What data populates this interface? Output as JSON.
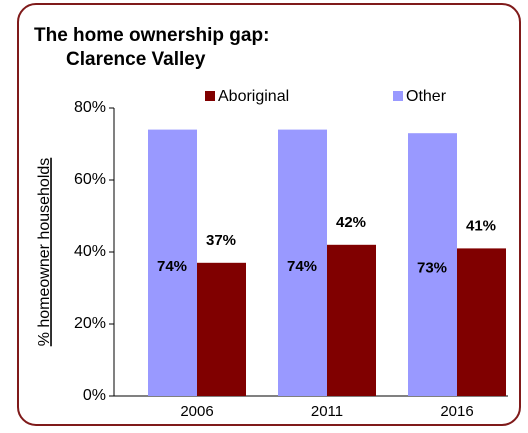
{
  "chart_data": {
    "type": "bar",
    "title": [
      "The home ownership gap:",
      "Clarence Valley"
    ],
    "y_label": "% homeowner households",
    "categories": [
      "2006",
      "2011",
      "2016"
    ],
    "series": [
      {
        "name": "Aboriginal",
        "color": "#800000",
        "values": [
          37,
          42,
          41
        ],
        "value_labels": [
          "37%",
          "42%",
          "41%"
        ]
      },
      {
        "name": "Other",
        "color": "#9999ff",
        "values": [
          74,
          74,
          73
        ],
        "value_labels": [
          "74%",
          "74%",
          "73%"
        ]
      }
    ],
    "ylim": [
      0,
      80
    ],
    "yticks": [
      {
        "value": 0,
        "label": "0%"
      },
      {
        "value": 20,
        "label": "20%"
      },
      {
        "value": 40,
        "label": "40%"
      },
      {
        "value": 60,
        "label": "60%"
      },
      {
        "value": 80,
        "label": "80%"
      }
    ],
    "grid": false
  }
}
